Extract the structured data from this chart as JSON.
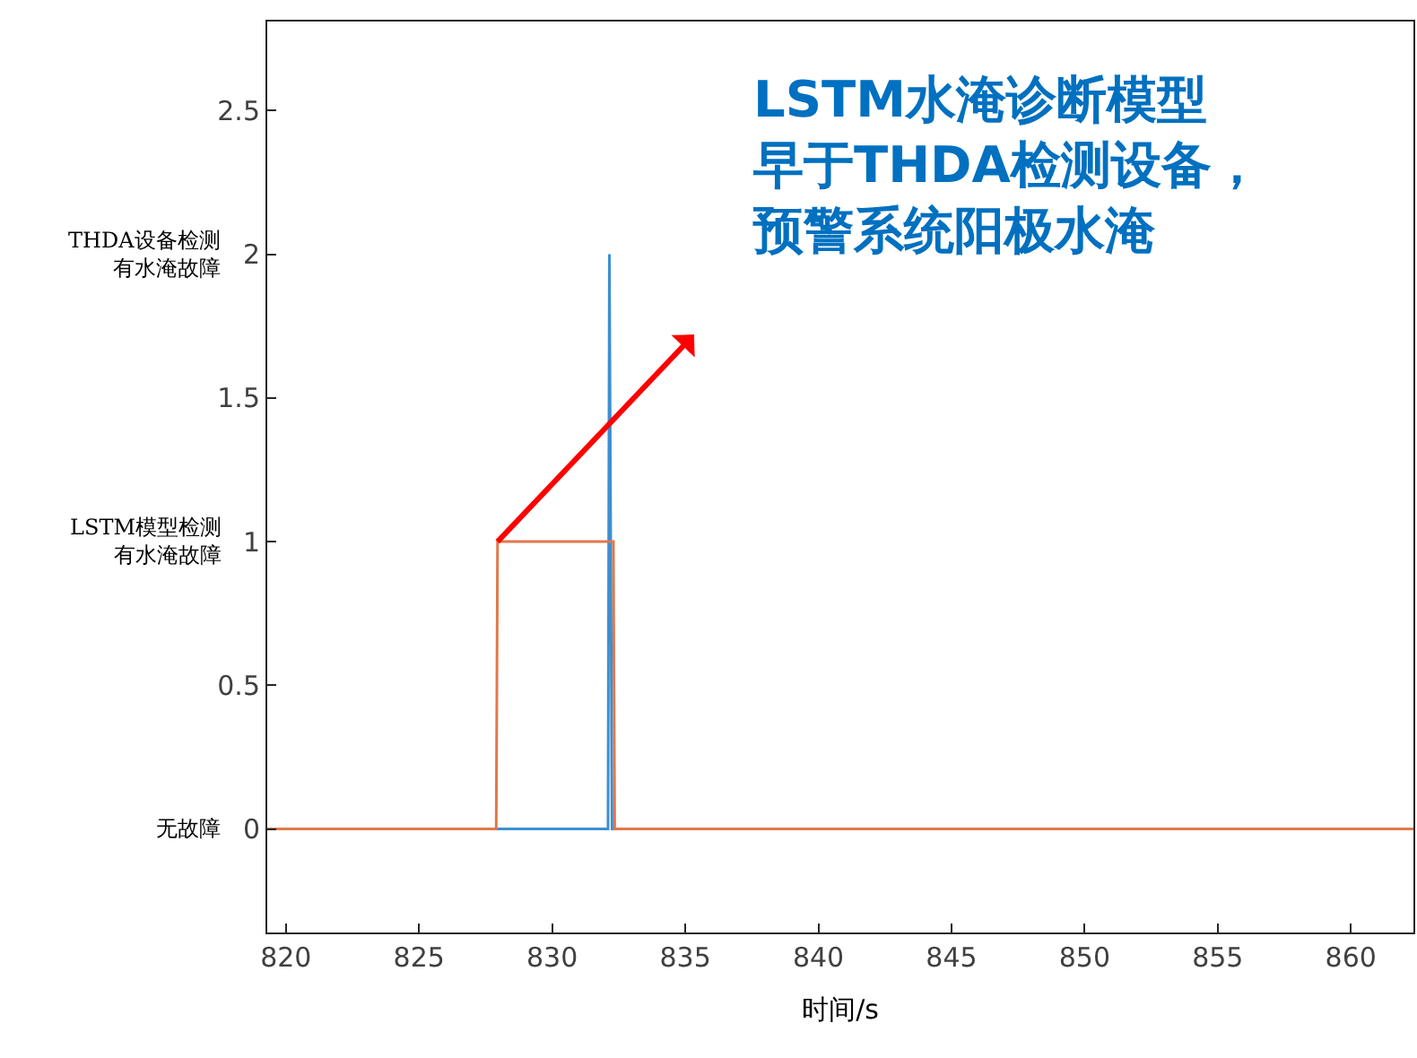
{
  "chart_data": {
    "type": "line",
    "xlabel": "时间/s",
    "series": [
      {
        "color": "#3d8fd1",
        "x": [
          819.3,
          832.1,
          832.15,
          832.25,
          862.35
        ],
        "values": [
          0,
          0,
          2,
          0,
          0
        ]
      },
      {
        "color": "#e0794a",
        "x": [
          819.3,
          827.9,
          827.95,
          832.3,
          832.35,
          862.35
        ],
        "values": [
          0,
          0,
          1,
          1,
          0,
          0
        ]
      }
    ],
    "xlim": [
      819.3,
      862.35
    ],
    "xticks": [
      820,
      825,
      830,
      835,
      840,
      845,
      850,
      855,
      860
    ],
    "ylim": [
      -0.36,
      2.81
    ],
    "yticks": [
      0,
      0.5,
      1,
      1.5,
      2,
      2.5
    ],
    "legend": false,
    "marker": "none",
    "line_style": "solid",
    "annotations": [
      "无故障",
      "LSTM模型检测有水淹故障",
      "THDA设备检测有水淹故障",
      "LSTM水淹诊断模型早于THDA检测设备，预警系统阳极水淹"
    ]
  }
}
